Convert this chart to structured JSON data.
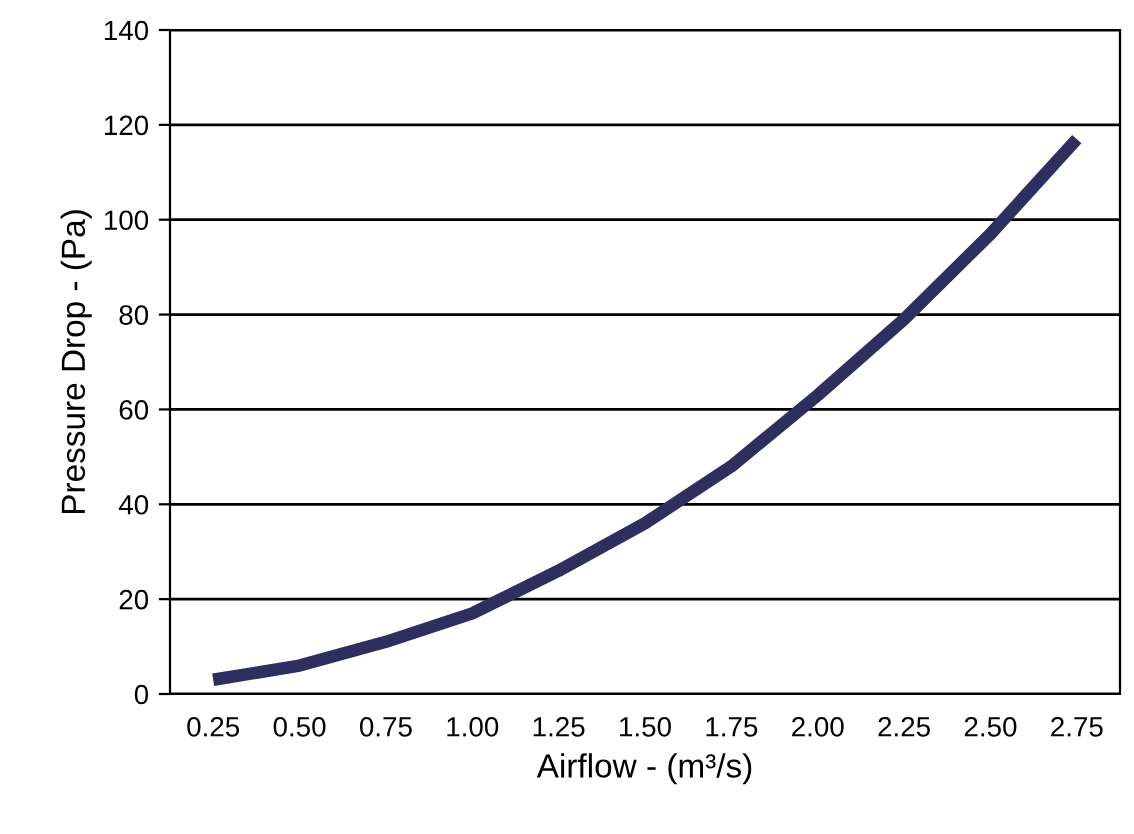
{
  "chart_data": {
    "type": "line",
    "xlabel": "Airflow - (m³/s)",
    "ylabel": "Pressure Drop - (Pa)",
    "categories": [
      "0.25",
      "0.50",
      "0.75",
      "1.00",
      "1.25",
      "1.50",
      "1.75",
      "2.00",
      "2.25",
      "2.50",
      "2.75"
    ],
    "series": [
      {
        "color": "#2f2f5f",
        "values": [
          3,
          6,
          11,
          17,
          26,
          36,
          48,
          63,
          79,
          97,
          117
        ]
      }
    ],
    "ylim": [
      0,
      140
    ],
    "yticks": [
      0,
      20,
      40,
      60,
      80,
      100,
      120,
      140
    ],
    "grid": "y",
    "marker": "none",
    "line_style": "solid"
  }
}
